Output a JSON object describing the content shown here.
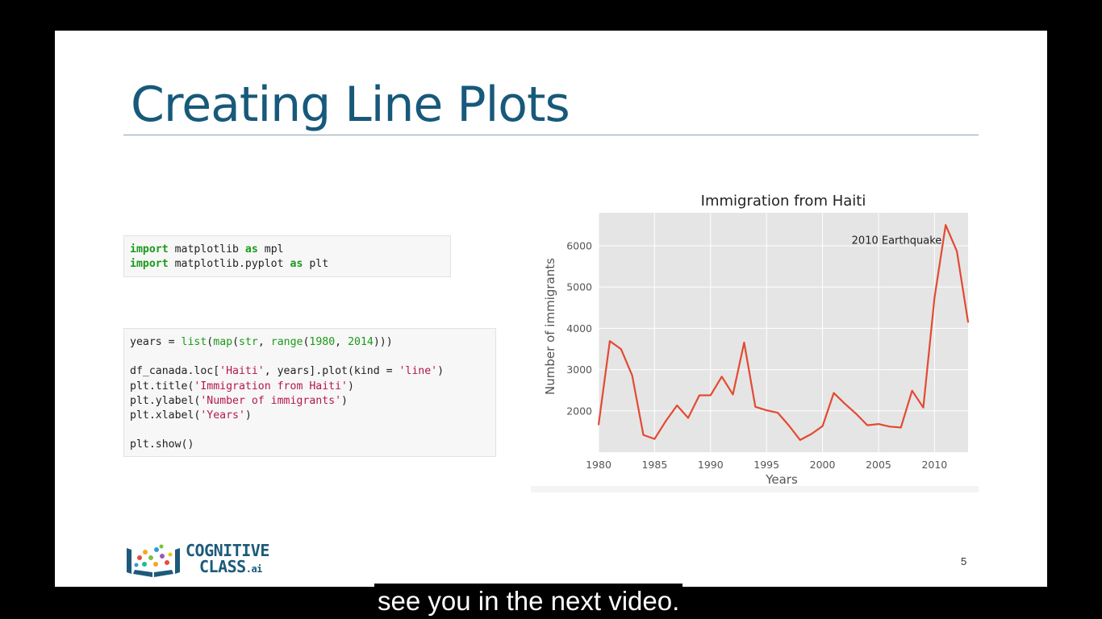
{
  "slide": {
    "title": "Creating Line Plots",
    "page_number": "5",
    "logo": {
      "line1": "COGNITIVE",
      "line2": "CLASS",
      "suffix": ".ai"
    }
  },
  "code_cells": [
    {
      "lines": [
        [
          {
            "t": "import",
            "c": "kw"
          },
          {
            "t": " matplotlib ",
            "c": "plain"
          },
          {
            "t": "as",
            "c": "kw"
          },
          {
            "t": " mpl",
            "c": "plain"
          }
        ],
        [
          {
            "t": "import",
            "c": "kw"
          },
          {
            "t": " matplotlib.pyplot ",
            "c": "plain"
          },
          {
            "t": "as",
            "c": "kw"
          },
          {
            "t": " plt",
            "c": "plain"
          }
        ]
      ]
    },
    {
      "lines": [
        [
          {
            "t": "years = ",
            "c": "plain"
          },
          {
            "t": "list",
            "c": "fn"
          },
          {
            "t": "(",
            "c": "plain"
          },
          {
            "t": "map",
            "c": "fn"
          },
          {
            "t": "(",
            "c": "plain"
          },
          {
            "t": "str",
            "c": "fn"
          },
          {
            "t": ", ",
            "c": "plain"
          },
          {
            "t": "range",
            "c": "fn"
          },
          {
            "t": "(",
            "c": "plain"
          },
          {
            "t": "1980",
            "c": "num"
          },
          {
            "t": ", ",
            "c": "plain"
          },
          {
            "t": "2014",
            "c": "num"
          },
          {
            "t": ")))",
            "c": "plain"
          }
        ],
        [],
        [
          {
            "t": "df_canada.loc[",
            "c": "plain"
          },
          {
            "t": "'Haiti'",
            "c": "str"
          },
          {
            "t": ", years].plot(kind = ",
            "c": "plain"
          },
          {
            "t": "'line'",
            "c": "str"
          },
          {
            "t": ")",
            "c": "plain"
          }
        ],
        [
          {
            "t": "plt.title(",
            "c": "plain"
          },
          {
            "t": "'Immigration from Haiti'",
            "c": "str"
          },
          {
            "t": ")",
            "c": "plain"
          }
        ],
        [
          {
            "t": "plt.ylabel(",
            "c": "plain"
          },
          {
            "t": "'Number of immigrants'",
            "c": "str"
          },
          {
            "t": ")",
            "c": "plain"
          }
        ],
        [
          {
            "t": "plt.xlabel(",
            "c": "plain"
          },
          {
            "t": "'Years'",
            "c": "str"
          },
          {
            "t": ")",
            "c": "plain"
          }
        ],
        [],
        [
          {
            "t": "plt.show()",
            "c": "plain"
          }
        ]
      ]
    }
  ],
  "chart_data": {
    "type": "line",
    "title": "Immigration from Haiti",
    "xlabel": "Years",
    "ylabel": "Number of immigrants",
    "xlim": [
      1980,
      2013
    ],
    "ylim": [
      1000,
      6800
    ],
    "xticks": [
      1980,
      1985,
      1990,
      1995,
      2000,
      2005,
      2010
    ],
    "yticks": [
      2000,
      3000,
      4000,
      5000,
      6000
    ],
    "grid": true,
    "style": "ggplot",
    "colors": {
      "line": "#e24a33",
      "background": "#e5e5e5",
      "grid": "#ffffff"
    },
    "annotations": [
      {
        "text": "2010 Earthquake",
        "x": 2002.6,
        "y": 6050
      }
    ],
    "series": [
      {
        "x": [
          1980,
          1981,
          1982,
          1983,
          1984,
          1985,
          1986,
          1987,
          1988,
          1989,
          1990,
          1991,
          1992,
          1993,
          1994,
          1995,
          1996,
          1997,
          1998,
          1999,
          2000,
          2001,
          2002,
          2003,
          2004,
          2005,
          2006,
          2007,
          2008,
          2009,
          2010,
          2011,
          2012,
          2013
        ],
        "values": [
          1666,
          3692,
          3498,
          2860,
          1418,
          1321,
          1753,
          2132,
          1829,
          2377,
          2379,
          2829,
          2399,
          3655,
          2100,
          2014,
          1955,
          1645,
          1295,
          1439,
          1631,
          2433,
          2174,
          1930,
          1652,
          1682,
          1619,
          1598,
          2491,
          2080,
          4744,
          6503,
          5868,
          4152
        ]
      }
    ]
  },
  "caption": {
    "text": "see you in the next video."
  }
}
